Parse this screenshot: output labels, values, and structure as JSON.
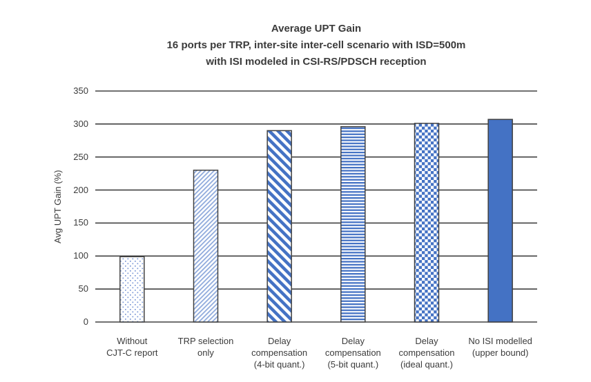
{
  "chart_data": {
    "type": "bar",
    "title": "Average UPT Gain",
    "subtitle1": "16 ports per TRP, inter-site inter-cell scenario with ISD=500m",
    "subtitle2": "with ISI modeled in CSI-RS/PDSCH reception",
    "ylabel": "Avg UPT Gain (%)",
    "ylim": [
      0,
      350
    ],
    "ytick_step": 50,
    "yticks": [
      0,
      50,
      100,
      150,
      200,
      250,
      300,
      350
    ],
    "grid": "horizontal gridlines on, dark gray",
    "legend": "none",
    "categories": [
      "Without\nCJT-C report",
      "TRP selection\nonly",
      "Delay\ncompensation\n(4-bit quant.)",
      "Delay\ncompensation\n(5-bit quant.)",
      "Delay\ncompensation\n(ideal quant.)",
      "No ISI modelled\n(upper bound)"
    ],
    "values": [
      99,
      230,
      290,
      296,
      301,
      307
    ],
    "bar_patterns": [
      "dots",
      "diag-forward",
      "diag-back",
      "horizontal",
      "checker",
      "solid"
    ],
    "colors": {
      "bar_blue": "#4472C4",
      "light_blue": "#8FAADC",
      "dot_blue": "#7A97D6",
      "outline": "#404040",
      "gridline": "#404040",
      "text": "#3B3B3B",
      "background": "#FFFFFF"
    }
  }
}
